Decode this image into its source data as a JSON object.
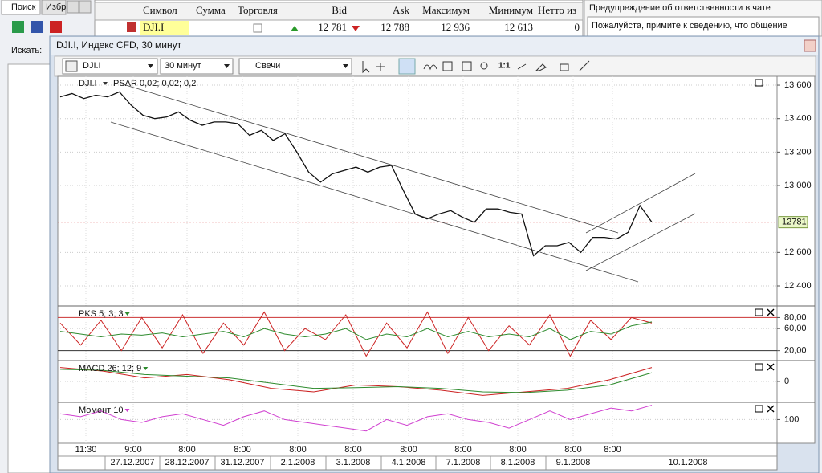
{
  "left_panel": {
    "tabs": [
      "Поиск",
      "Избр"
    ],
    "search_label": "Искать:"
  },
  "quotes_table": {
    "headers": [
      "Символ",
      "Сумма",
      "Торговля",
      "Bid",
      "Ask",
      "Максимум",
      "Минимум",
      "Нетто из"
    ],
    "row": {
      "symbol": "DJI.I",
      "bid": "12 781",
      "ask": "12 788",
      "high": "12 936",
      "low": "12 613",
      "net": "0"
    }
  },
  "chat_panel": {
    "title": "Предупреждение об ответственности в чате",
    "message": "Пожалуйста, примите к сведению, что общение"
  },
  "chart_window": {
    "title": "DJI.I, Индекс CFD, 30 минут",
    "toolbar": {
      "symbol": "DJI.I",
      "interval": "30 минут",
      "style": "Свечи",
      "zoom": "1:1"
    }
  },
  "time_axis": {
    "times": [
      "11:30",
      "9:00",
      "8:00",
      "8:00",
      "8:00",
      "8:00",
      "8:00",
      "8:00",
      "8:00",
      "8:00",
      "8:00"
    ],
    "dates": [
      "27.12.2007",
      "28.12.2007",
      "31.12.2007",
      "2.1.2008",
      "3.1.2008",
      "4.1.2008",
      "7.1.2008",
      "8.1.2008",
      "9.1.2008",
      "10.1.2008"
    ]
  },
  "chart_data": [
    {
      "type": "line",
      "indicator_label": "PSAR 0,02; 0,02; 0,2",
      "series": [
        {
          "name": "DJI.I",
          "color": "#111111",
          "values": [
            13530,
            13550,
            13520,
            13540,
            13530,
            13560,
            13480,
            13420,
            13400,
            13410,
            13440,
            13390,
            13360,
            13380,
            13380,
            13370,
            13300,
            13330,
            13270,
            13310,
            13200,
            13080,
            13020,
            13070,
            13090,
            13110,
            13080,
            13110,
            13120,
            12970,
            12830,
            12800,
            12830,
            12850,
            12810,
            12780,
            12860,
            12860,
            12840,
            12830,
            12580,
            12640,
            12640,
            12660,
            12600,
            12690,
            12690,
            12680,
            12720,
            12880,
            12781
          ]
        }
      ],
      "last_price": 12781,
      "last_price_color": "#cc0000",
      "ylim": [
        12280,
        13653
      ],
      "yticks": [
        {
          "value": 13600,
          "label": "13 600"
        },
        {
          "value": 13400,
          "label": "13 400"
        },
        {
          "value": 13200,
          "label": "13 200"
        },
        {
          "value": 13000,
          "label": "13 000"
        },
        {
          "value": 12600,
          "label": "12 600"
        },
        {
          "value": 12400,
          "label": "12 400"
        }
      ],
      "grid": true
    },
    {
      "type": "line",
      "title": "PKS 5; 3; 3",
      "series": [
        {
          "color": "#cc2222",
          "values": [
            70,
            30,
            75,
            20,
            80,
            25,
            85,
            15,
            70,
            30,
            90,
            20,
            60,
            40,
            85,
            10,
            70,
            25,
            90,
            15,
            80,
            20,
            65,
            30,
            85,
            10,
            75,
            40,
            80,
            70
          ]
        },
        {
          "color": "#2e8b2e",
          "values": [
            55,
            50,
            45,
            50,
            48,
            52,
            45,
            50,
            55,
            45,
            60,
            50,
            45,
            50,
            60,
            40,
            50,
            45,
            60,
            45,
            55,
            45,
            50,
            45,
            60,
            40,
            55,
            50,
            65,
            72
          ]
        }
      ],
      "ylim": [
        2,
        101
      ],
      "yticks": [
        {
          "value": 80,
          "label": "80,00"
        },
        {
          "value": 60,
          "label": "60,00"
        },
        {
          "value": 20,
          "label": "20,00"
        }
      ],
      "grid": true
    },
    {
      "type": "line",
      "title": "MACD 26; 12; 9",
      "series": [
        {
          "color": "#cc2222",
          "values": [
            40,
            30,
            10,
            20,
            5,
            -20,
            -30,
            -10,
            -15,
            -25,
            -40,
            -30,
            -20,
            5,
            40
          ]
        },
        {
          "color": "#2e8b2e",
          "values": [
            35,
            32,
            20,
            15,
            10,
            -5,
            -20,
            -18,
            -15,
            -20,
            -30,
            -32,
            -25,
            -10,
            25
          ]
        }
      ],
      "ylim": [
        -60,
        60
      ],
      "yticks": [
        0
      ],
      "grid": true
    },
    {
      "type": "line",
      "title": "Момент 10",
      "series": [
        {
          "color": "#d040d0",
          "values": [
            101,
            100.5,
            101.5,
            100,
            99.5,
            100.5,
            101,
            100,
            99,
            100.5,
            101.5,
            100,
            99.5,
            99,
            98.5,
            98,
            100,
            99,
            100.5,
            101,
            100,
            99.5,
            98.5,
            100,
            101.5,
            100,
            101,
            102,
            101.5,
            102.5
          ]
        }
      ],
      "ylim": [
        96,
        103
      ],
      "yticks": [
        100
      ],
      "grid": true
    }
  ]
}
